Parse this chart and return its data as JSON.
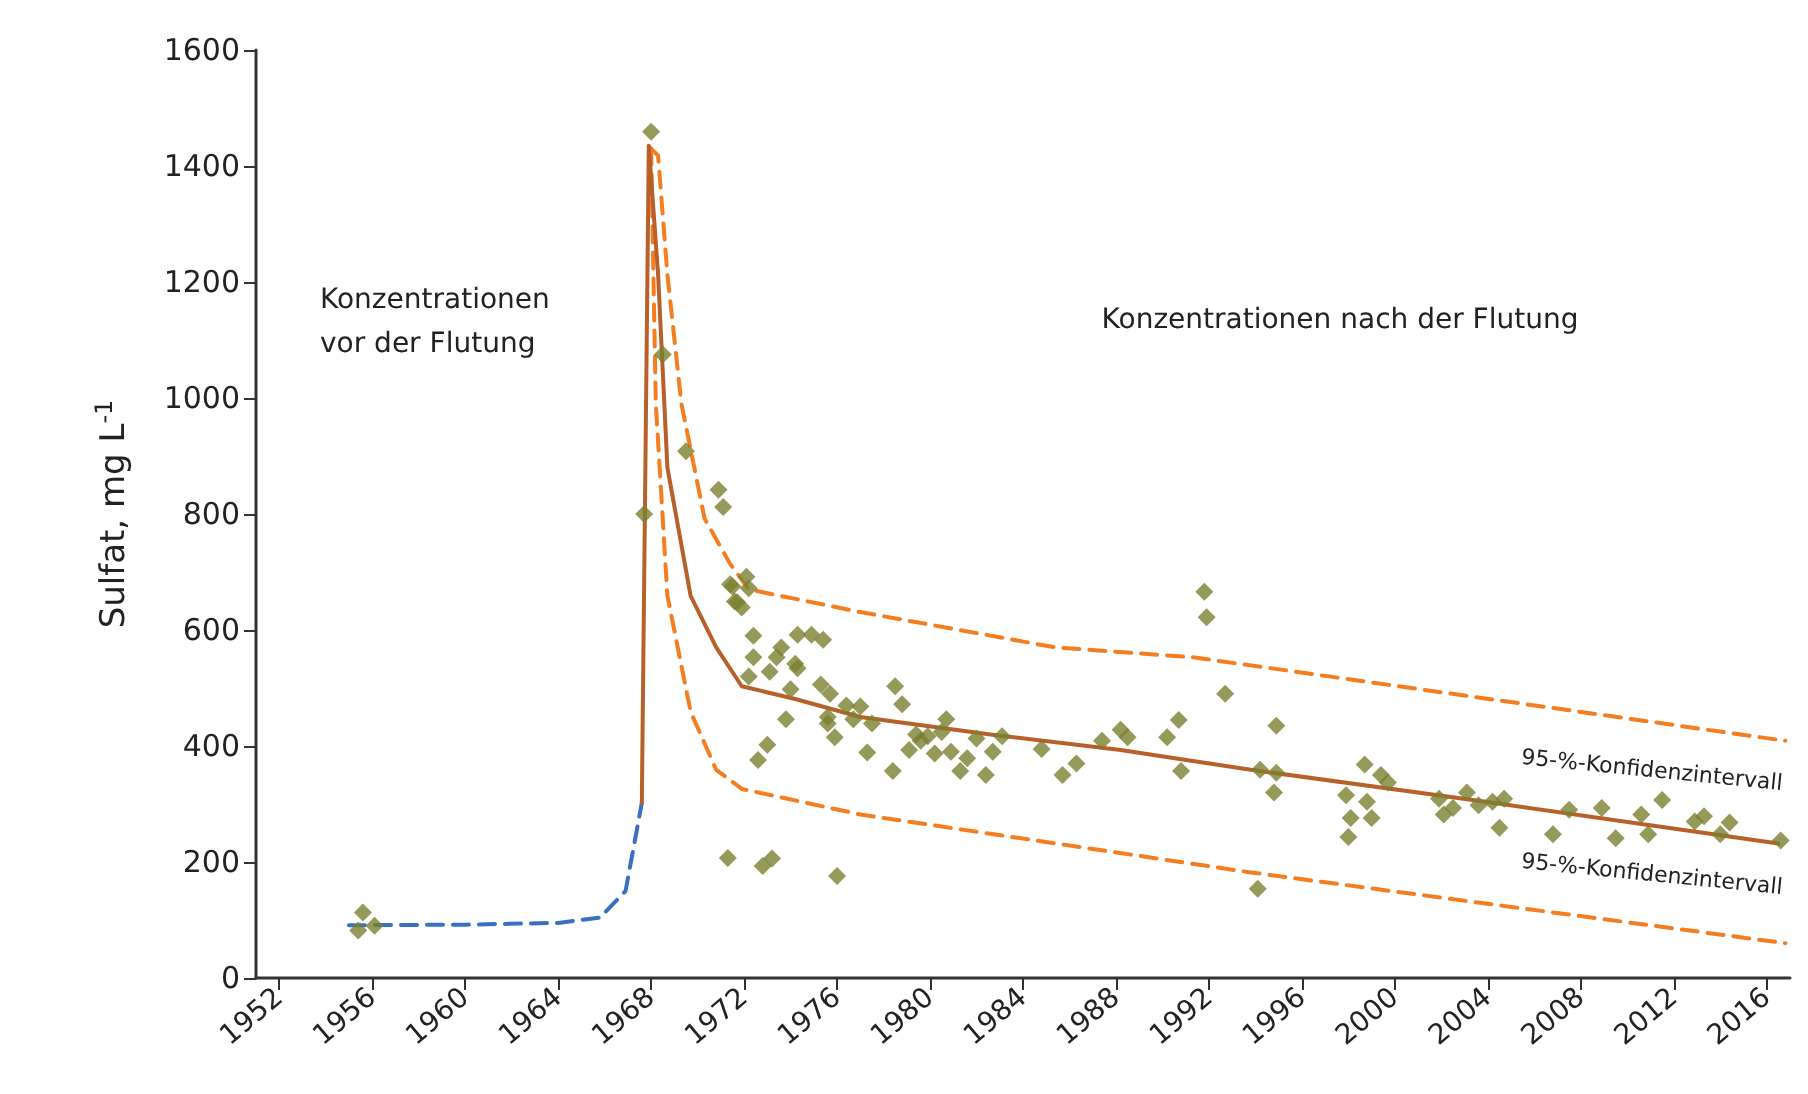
{
  "chart_data": {
    "type": "scatter",
    "ylabel": "Sulfat, mg L$^{-1}$",
    "xlim": [
      1951,
      2017
    ],
    "xticks": [
      1952,
      1956,
      1960,
      1964,
      1968,
      1972,
      1976,
      1980,
      1984,
      1988,
      1992,
      1996,
      2000,
      2004,
      2008,
      2012,
      2016
    ],
    "ylim": [
      0,
      1600
    ],
    "yticks": [
      0,
      200,
      400,
      600,
      800,
      1000,
      1200,
      1400,
      1600
    ],
    "grid": false,
    "series": [
      {
        "type": "line",
        "color": "#3a70c0",
        "line_style": "dashed",
        "marker": "none",
        "x": [
          1955,
          1960,
          1964,
          1965.8,
          1966.9,
          1967.6
        ],
        "values": [
          91,
          92,
          95,
          104,
          150,
          302
        ]
      },
      {
        "type": "line",
        "color": "#f47d20",
        "line_style": "dashed",
        "marker": "none",
        "x": [
          1968.0,
          1968.3,
          1968.7,
          1969.3,
          1970.3,
          1971.4,
          1972.2,
          1977.0,
          1985.4,
          1991.3,
          1993.8,
          2016.8
        ],
        "values": [
          1430,
          1418,
          1213,
          991,
          792,
          714,
          670,
          631,
          570,
          553,
          539,
          409
        ]
      },
      {
        "type": "line",
        "color": "#f47d20",
        "line_style": "dashed",
        "marker": "none",
        "x": [
          1968.0,
          1968.2,
          1968.7,
          1969.7,
          1970.8,
          1971.9,
          1977.0,
          1985.4,
          1993.8,
          2016.8
        ],
        "values": [
          1430,
          991,
          659,
          459,
          359,
          326,
          282,
          232,
          182,
          60
        ]
      },
      {
        "type": "line",
        "color": "#b8602a",
        "line_style": "solid",
        "marker": "none",
        "x": [
          1967.6,
          1967.9,
          1968.3,
          1968.7,
          1969.7,
          1970.8,
          1971.9,
          1974.2,
          1977.0,
          1982.6,
          1988.2,
          1993.8,
          2003.9,
          2016.5
        ],
        "values": [
          302,
          1435,
          1213,
          880,
          659,
          570,
          503,
          481,
          450,
          420,
          393,
          359,
          304,
          232
        ]
      },
      {
        "color": "#7a8030",
        "marker": "diamond",
        "x": [
          1955.6,
          1955.4,
          1956.1,
          1968.0,
          1967.7,
          1968.5,
          1969.5,
          1970.9,
          1971.1,
          1971.4,
          1971.6,
          1971.3,
          1972.1,
          1971.5,
          1972.2,
          1971.7,
          1971.9,
          1972.4,
          1972.4,
          1972.2,
          1973.6,
          1973.4,
          1973.1,
          1974.3,
          1974.9,
          1975.4,
          1974.2,
          1974.3,
          1974.0,
          1975.3,
          1975.7,
          1975.6,
          1975.6,
          1975.9,
          1976.4,
          1977.0,
          1976.7,
          1977.5,
          1977.3,
          1978.5,
          1978.8,
          1978.4,
          1973.8,
          1973.0,
          1972.6,
          1972.8,
          1973.2,
          1976.0,
          1979.4,
          1979.6,
          1979.1,
          1979.9,
          1980.7,
          1980.5,
          1980.2,
          1980.9,
          1981.6,
          1981.3,
          1982.0,
          1982.7,
          1983.1,
          1982.4,
          1984.8,
          1985.7,
          1986.3,
          1987.4,
          1988.2,
          1988.5,
          1990.2,
          1990.7,
          1990.8,
          1991.8,
          1991.9,
          1992.7,
          1994.9,
          1994.2,
          1994.9,
          1994.8,
          1994.1,
          1997.9,
          1998.7,
          1999.4,
          1999.7,
          1998.8,
          1999.0,
          1998.1,
          1998.0,
          2001.9,
          2002.5,
          2003.1,
          2003.6,
          2004.2,
          2004.7,
          2004.5,
          2002.1,
          2006.8,
          2007.5,
          2008.9,
          2009.5,
          2010.6,
          2011.5,
          2010.9,
          2012.9,
          2013.3,
          2014.0,
          2014.4,
          2016.6
        ],
        "values": [
          113,
          82,
          90,
          1459,
          800,
          1075,
          908,
          842,
          812,
          679,
          649,
          207,
          692,
          675,
          672,
          648,
          639,
          590,
          553,
          520,
          570,
          553,
          528,
          592,
          592,
          583,
          542,
          534,
          498,
          506,
          490,
          450,
          439,
          415,
          470,
          468,
          446,
          439,
          389,
          503,
          472,
          357,
          446,
          402,
          376,
          193,
          206,
          176,
          420,
          409,
          393,
          417,
          446,
          424,
          387,
          390,
          379,
          357,
          413,
          390,
          417,
          350,
          395,
          350,
          370,
          409,
          428,
          415,
          415,
          445,
          357,
          666,
          622,
          490,
          435,
          359,
          354,
          320,
          154,
          315,
          368,
          350,
          337,
          304,
          276,
          276,
          243,
          309,
          293,
          320,
          298,
          304,
          309,
          259,
          282,
          248,
          290,
          293,
          241,
          282,
          307,
          248,
          270,
          279,
          248,
          268,
          237
        ]
      }
    ],
    "annotations": [
      "Konzentrationen\nvor der Flutung",
      "Konzentrationen nach der Flutung",
      "95-%-Konfidenzintervall",
      "95-%-Konfidenzintervall"
    ]
  }
}
